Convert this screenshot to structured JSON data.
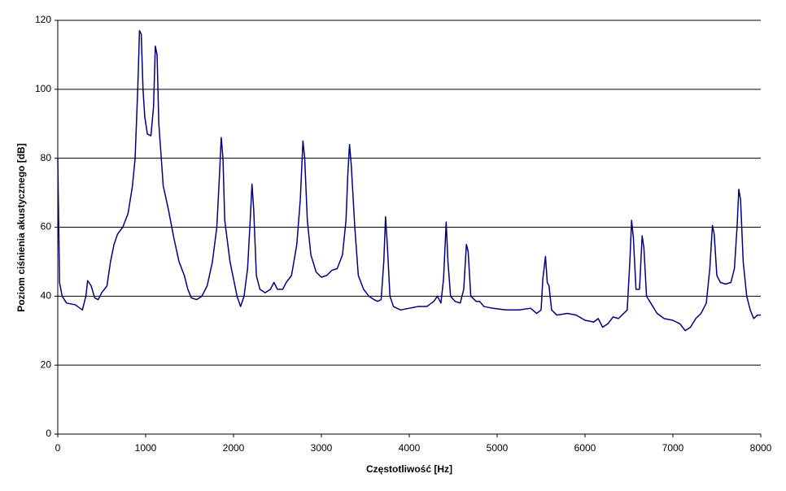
{
  "chart_data": {
    "type": "line",
    "xlabel": "Częstotliwość [Hz]",
    "ylabel": "Poziom ciśnienia akustycznego [dB]",
    "x": [
      0,
      20,
      50,
      100,
      200,
      280,
      320,
      340,
      380,
      420,
      460,
      500,
      560,
      600,
      640,
      680,
      740,
      800,
      850,
      880,
      910,
      930,
      950,
      970,
      990,
      1020,
      1060,
      1090,
      1110,
      1130,
      1150,
      1200,
      1260,
      1320,
      1380,
      1440,
      1480,
      1520,
      1580,
      1640,
      1700,
      1760,
      1810,
      1840,
      1860,
      1880,
      1900,
      1960,
      2000,
      2040,
      2080,
      2120,
      2160,
      2190,
      2210,
      2230,
      2260,
      2300,
      2360,
      2420,
      2460,
      2500,
      2560,
      2600,
      2660,
      2720,
      2760,
      2790,
      2810,
      2840,
      2880,
      2940,
      3000,
      3060,
      3120,
      3180,
      3240,
      3280,
      3300,
      3320,
      3340,
      3380,
      3420,
      3480,
      3540,
      3600,
      3640,
      3680,
      3710,
      3730,
      3750,
      3780,
      3820,
      3900,
      4000,
      4100,
      4200,
      4280,
      4320,
      4360,
      4390,
      4420,
      4440,
      4470,
      4520,
      4580,
      4620,
      4650,
      4670,
      4700,
      4760,
      4800,
      4850,
      4950,
      5100,
      5250,
      5380,
      5450,
      5500,
      5520,
      5550,
      5570,
      5590,
      5620,
      5680,
      5800,
      5900,
      6000,
      6100,
      6150,
      6200,
      6260,
      6320,
      6380,
      6440,
      6480,
      6510,
      6530,
      6550,
      6580,
      6620,
      6650,
      6670,
      6700,
      6760,
      6820,
      6900,
      7000,
      7080,
      7140,
      7200,
      7260,
      7320,
      7380,
      7420,
      7450,
      7470,
      7500,
      7540,
      7600,
      7660,
      7700,
      7730,
      7750,
      7770,
      7800,
      7840,
      7880,
      7920,
      7960,
      8000
    ],
    "series": [
      {
        "name": "Poziom",
        "color": "#000080",
        "values": [
          80,
          44,
          40,
          38,
          37.5,
          36,
          40,
          44.5,
          43,
          39.5,
          39,
          41,
          43,
          50,
          55,
          58,
          60,
          64,
          72,
          80,
          100,
          117,
          116,
          100,
          92,
          87,
          86.5,
          95,
          112.5,
          110,
          90,
          72,
          65,
          57,
          50,
          46,
          42,
          39.5,
          39,
          40,
          43,
          50,
          60,
          75,
          86,
          80,
          62,
          50,
          45,
          40,
          37,
          40,
          48,
          62,
          72.5,
          65,
          46,
          42,
          41,
          42,
          44,
          42,
          42,
          44,
          46,
          55,
          68,
          85,
          80,
          62,
          52,
          47,
          45.5,
          46,
          47.5,
          48,
          52,
          62,
          75,
          84,
          78,
          60,
          46,
          42,
          40,
          39,
          38.5,
          39,
          50,
          63,
          55,
          40,
          37,
          36,
          36.5,
          37,
          37,
          38.5,
          40,
          38,
          45,
          61.5,
          50,
          40,
          38.5,
          38,
          42,
          55,
          53,
          40,
          38.5,
          38.5,
          37,
          36.5,
          36,
          36,
          36.5,
          35,
          36,
          45,
          51.5,
          44,
          43,
          36,
          34.5,
          35,
          34.5,
          33,
          32.5,
          33.5,
          31,
          32,
          34,
          33.5,
          35,
          36,
          50,
          62,
          57,
          42,
          42,
          57.5,
          54,
          40,
          37.5,
          35,
          33.5,
          33,
          32,
          30,
          31,
          33.5,
          35,
          38,
          48,
          60.5,
          58,
          46,
          44,
          43.5,
          44,
          48,
          60,
          71,
          68,
          50,
          40,
          36,
          33.5,
          34.5,
          34.5
        ]
      }
    ],
    "xlim": [
      0,
      8000
    ],
    "xticks": [
      0,
      1000,
      2000,
      3000,
      4000,
      5000,
      6000,
      7000,
      8000
    ],
    "ylim": [
      0,
      120
    ],
    "yticks": [
      0,
      20,
      40,
      60,
      80,
      100,
      120
    ],
    "grid": true
  }
}
